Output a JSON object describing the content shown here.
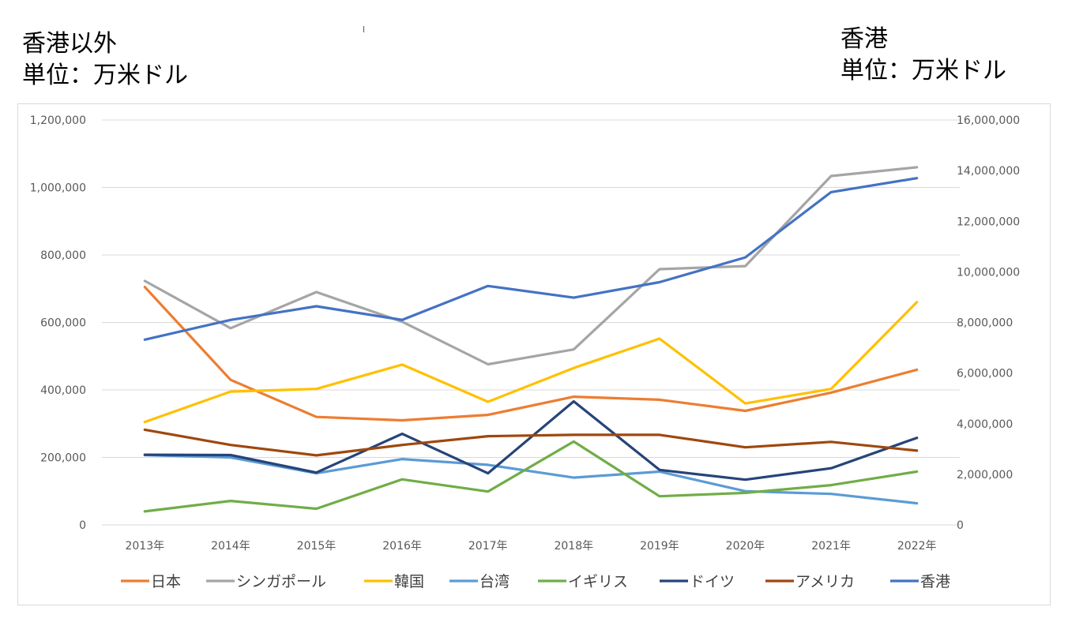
{
  "heading_left": "香港以外\n単位：万米ドル",
  "heading_right": "香港\n単位：万米ドル",
  "chart_data": {
    "type": "line",
    "categories": [
      "2013年",
      "2014年",
      "2015年",
      "2016年",
      "2017年",
      "2018年",
      "2019年",
      "2020年",
      "2021年",
      "2022年"
    ],
    "y_left": {
      "ylim": [
        0,
        1200000
      ],
      "ticks": [
        "0",
        "200,000",
        "400,000",
        "600,000",
        "800,000",
        "1,000,000",
        "1,200,000"
      ]
    },
    "y_right": {
      "ylim": [
        0,
        16000000
      ],
      "ticks": [
        "0",
        "2,000,000",
        "4,000,000",
        "6,000,000",
        "8,000,000",
        "10,000,000",
        "12,000,000",
        "14,000,000",
        "16,000,000"
      ]
    },
    "grid": true,
    "legend_position": "bottom",
    "series": [
      {
        "name": "日本",
        "color": "#ED7D31",
        "axis": "left",
        "values": [
          705000,
          430000,
          320000,
          310000,
          326000,
          380000,
          371000,
          338000,
          392000,
          460000
        ]
      },
      {
        "name": "シンガポール",
        "color": "#A5A5A5",
        "axis": "left",
        "values": [
          723000,
          583000,
          690000,
          602000,
          476000,
          520000,
          758000,
          767000,
          1034000,
          1060000
        ]
      },
      {
        "name": "韓国",
        "color": "#FFC000",
        "axis": "left",
        "values": [
          305000,
          395000,
          403000,
          475000,
          365000,
          465000,
          552000,
          360000,
          403000,
          660000
        ]
      },
      {
        "name": "台湾",
        "color": "#5B9BD5",
        "axis": "left",
        "values": [
          207000,
          200000,
          153000,
          195000,
          178000,
          140000,
          158000,
          100000,
          92000,
          64000
        ]
      },
      {
        "name": "イギリス",
        "color": "#70AD47",
        "axis": "left",
        "values": [
          40000,
          71000,
          48000,
          135000,
          99000,
          247000,
          85000,
          95000,
          118000,
          158000
        ]
      },
      {
        "name": "ドイツ",
        "color": "#264478",
        "axis": "left",
        "values": [
          208000,
          207000,
          155000,
          270000,
          153000,
          366000,
          163000,
          134000,
          168000,
          258000
        ]
      },
      {
        "name": "アメリカ",
        "color": "#9E480E",
        "axis": "left",
        "values": [
          282000,
          237000,
          206000,
          237000,
          263000,
          267000,
          267000,
          230000,
          246000,
          220000
        ]
      },
      {
        "name": "香港",
        "color": "#4472C4",
        "axis": "right",
        "values": [
          7320000,
          8100000,
          8640000,
          8100000,
          9440000,
          8980000,
          9590000,
          10570000,
          13150000,
          13700000
        ]
      }
    ]
  }
}
